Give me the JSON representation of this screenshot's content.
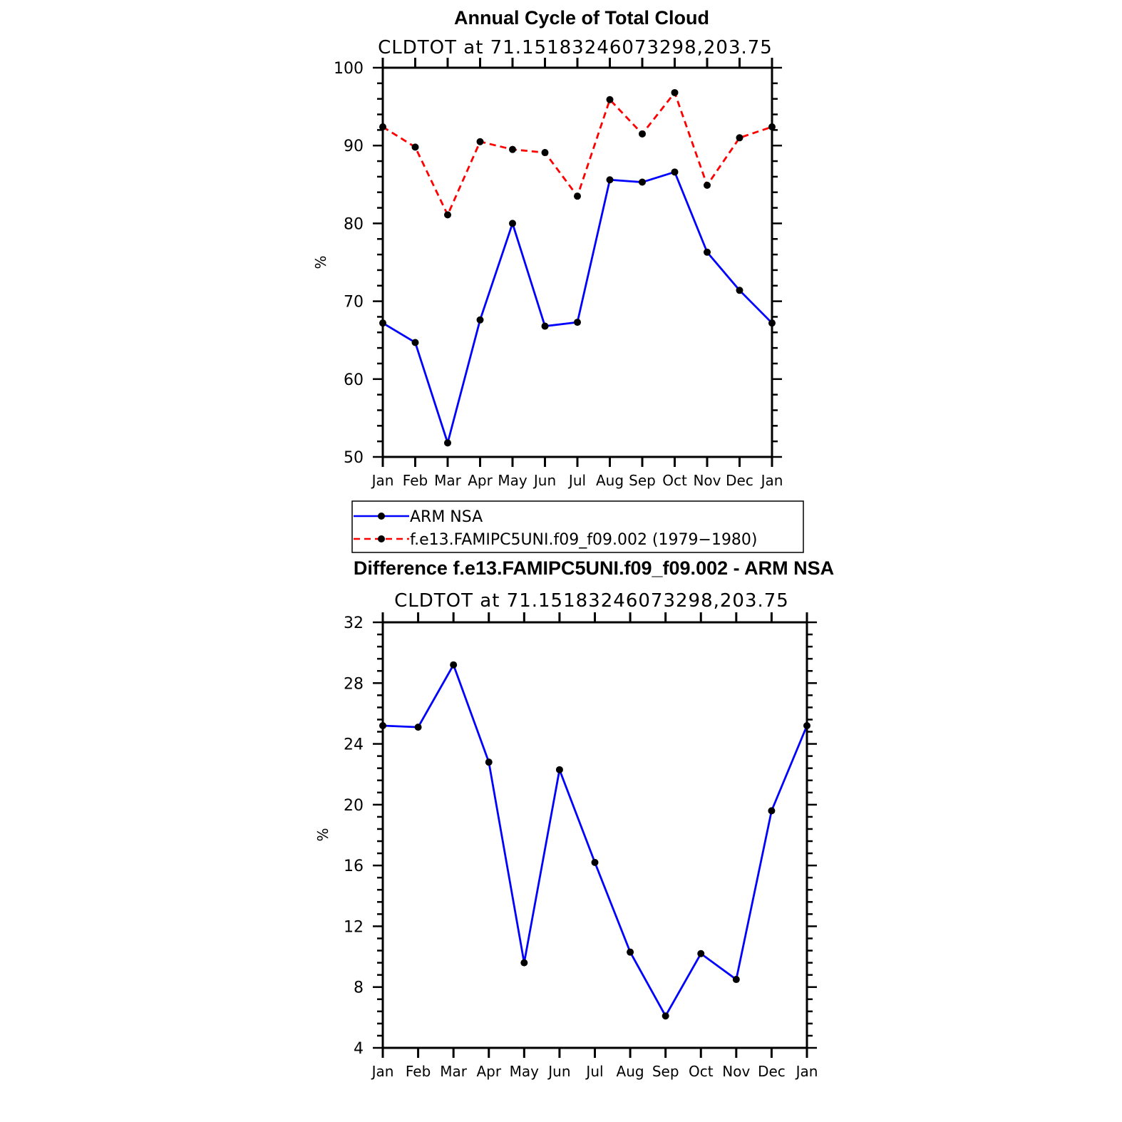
{
  "chart_data": [
    {
      "type": "line",
      "title": "Annual Cycle of Total Cloud",
      "subtitle": "CLDTOT at 71.15183246073298,203.75",
      "xlabel": "",
      "ylabel": "%",
      "categories": [
        "Jan",
        "Feb",
        "Mar",
        "Apr",
        "May",
        "Jun",
        "Jul",
        "Aug",
        "Sep",
        "Oct",
        "Nov",
        "Dec",
        "Jan"
      ],
      "ylim": [
        50,
        100
      ],
      "yticks": [
        50,
        60,
        70,
        80,
        90,
        100
      ],
      "series": [
        {
          "name": "ARM NSA",
          "color": "#0000ff",
          "dash": "solid",
          "values": [
            67.2,
            64.7,
            51.8,
            67.6,
            80.0,
            66.8,
            67.3,
            85.6,
            85.3,
            86.6,
            76.3,
            71.4,
            67.2
          ]
        },
        {
          "name": "f.e13.FAMIPC5UNI.f09_f09.002 (1979-1980)",
          "color": "#ff0000",
          "dash": "dashed",
          "values": [
            92.4,
            89.8,
            81.1,
            90.5,
            89.5,
            89.1,
            83.5,
            95.9,
            91.5,
            96.8,
            84.9,
            91.0,
            92.4
          ]
        }
      ],
      "legend": {
        "position": "bottom",
        "entries": [
          "ARM NSA",
          "f.e13.FAMIPC5UNI.f09_f09.002 (1979−1980)"
        ]
      }
    },
    {
      "type": "line",
      "title": "Difference f.e13.FAMIPC5UNI.f09_f09.002 - ARM NSA",
      "subtitle": "CLDTOT at 71.15183246073298,203.75",
      "xlabel": "",
      "ylabel": "%",
      "categories": [
        "Jan",
        "Feb",
        "Mar",
        "Apr",
        "May",
        "Jun",
        "Jul",
        "Aug",
        "Sep",
        "Oct",
        "Nov",
        "Dec",
        "Jan"
      ],
      "ylim": [
        4,
        32
      ],
      "yticks": [
        4,
        8,
        12,
        16,
        20,
        24,
        28,
        32
      ],
      "series": [
        {
          "color": "#0000ff",
          "dash": "solid",
          "values": [
            25.2,
            25.1,
            29.2,
            22.8,
            9.6,
            22.3,
            16.2,
            10.3,
            6.1,
            10.2,
            8.5,
            19.6,
            25.2
          ]
        }
      ]
    }
  ]
}
